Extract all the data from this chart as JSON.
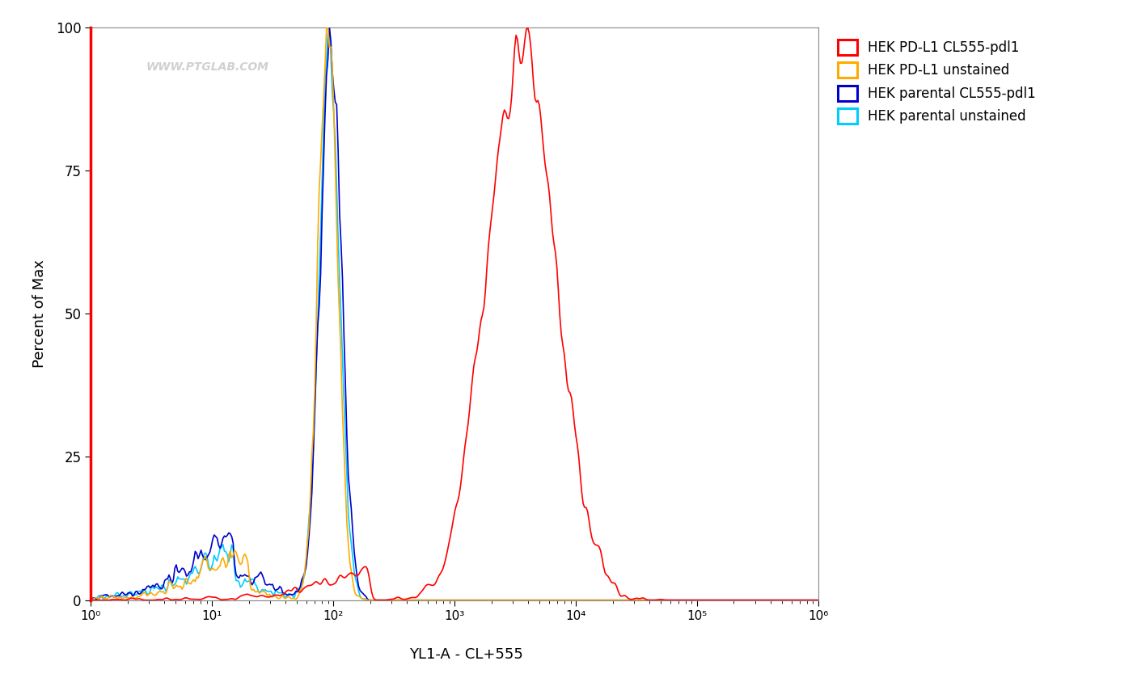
{
  "title": "",
  "xlabel": "YL1-A - CL+555",
  "ylabel": "Percent of Max",
  "xlim_log": [
    1,
    1000000
  ],
  "ylim": [
    0,
    100
  ],
  "watermark": "WWW.PTGLAB.COM",
  "legend_labels": [
    "HEK PD-L1 CL555-pdl1",
    "HEK PD-L1 unstained",
    "HEK parental CL555-pdl1",
    "HEK parental unstained"
  ],
  "legend_colors": [
    "#ff0000",
    "#ffaa00",
    "#0000cc",
    "#00ccff"
  ],
  "bg_color": "#ffffff",
  "plot_bg_color": "#ffffff",
  "yticks": [
    0,
    25,
    50,
    75,
    100
  ],
  "red_vline_color": "#ff0000",
  "spine_color": "#888888",
  "watermark_color": "#c8c8c8"
}
